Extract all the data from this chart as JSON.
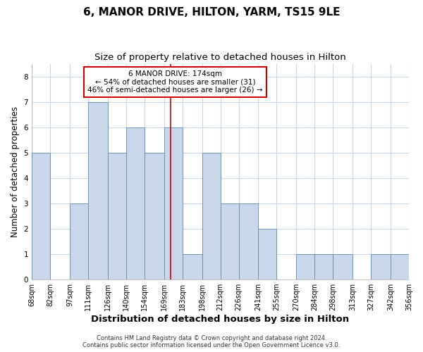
{
  "title": "6, MANOR DRIVE, HILTON, YARM, TS15 9LE",
  "subtitle": "Size of property relative to detached houses in Hilton",
  "xlabel": "Distribution of detached houses by size in Hilton",
  "ylabel": "Number of detached properties",
  "bin_edges": [
    68,
    82,
    97,
    111,
    126,
    140,
    154,
    169,
    183,
    198,
    212,
    226,
    241,
    255,
    270,
    284,
    298,
    313,
    327,
    342,
    356
  ],
  "bar_heights": [
    5,
    0,
    3,
    7,
    5,
    6,
    5,
    6,
    1,
    5,
    3,
    3,
    2,
    0,
    1,
    1,
    1,
    0,
    1,
    1
  ],
  "bar_color": "#c8d8ea",
  "bar_edge_color": "#5a8ab0",
  "grid_color": "#c8d8ea",
  "reference_line_x": 174,
  "reference_line_color": "#cc0000",
  "annotation_text": "6 MANOR DRIVE: 174sqm\n← 54% of detached houses are smaller (31)\n46% of semi-detached houses are larger (26) →",
  "annotation_box_color": "#ffffff",
  "annotation_box_edge_color": "#cc0000",
  "ylim": [
    0,
    8.5
  ],
  "yticks": [
    0,
    1,
    2,
    3,
    4,
    5,
    6,
    7,
    8
  ],
  "footnote1": "Contains HM Land Registry data © Crown copyright and database right 2024.",
  "footnote2": "Contains public sector information licensed under the Open Government Licence v3.0.",
  "title_fontsize": 11,
  "subtitle_fontsize": 9.5,
  "tick_fontsize": 7,
  "xlabel_fontsize": 9.5,
  "ylabel_fontsize": 8.5,
  "bg_color": "#ffffff"
}
